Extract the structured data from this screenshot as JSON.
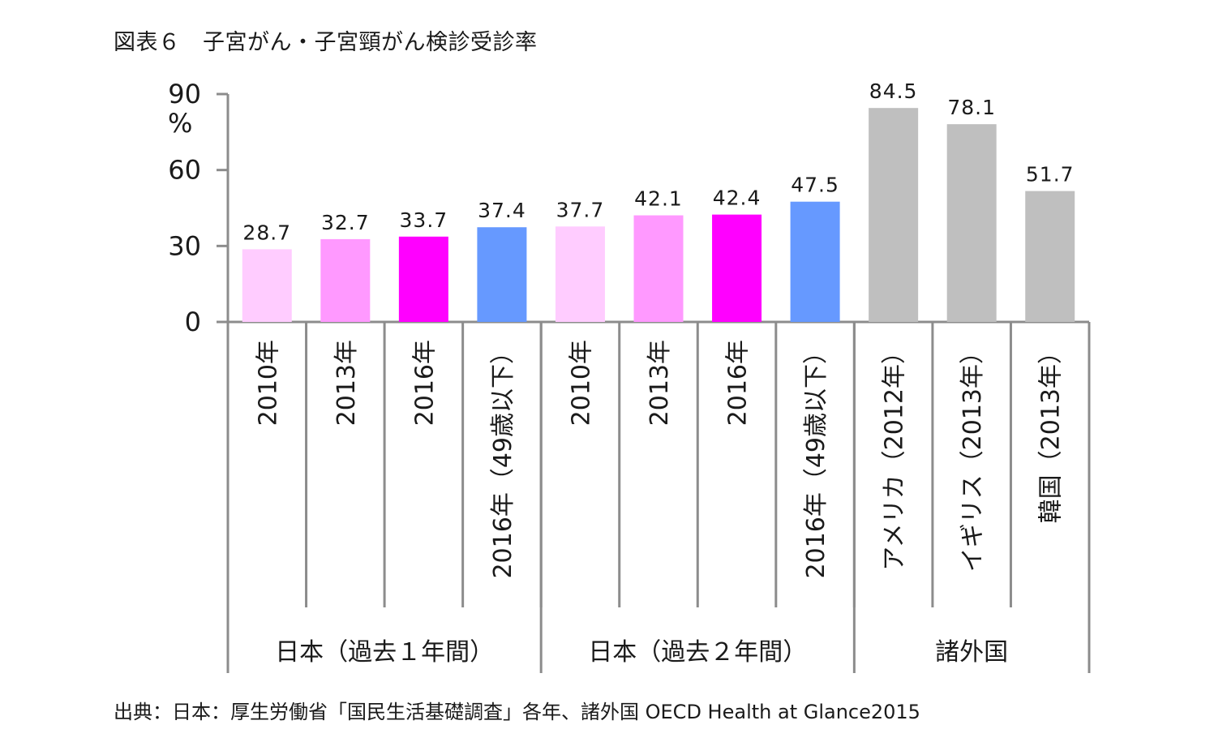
{
  "title": "図表６　子宮がん・子宮頸がん検診受診率",
  "source": "出典：日本：厚生労働省「国民生活基礎調査」各年、諸外国 OECD Health at Glance2015",
  "chart_data": {
    "type": "bar",
    "title": "図表６　子宮がん・子宮頸がん検診受診率",
    "ylabel": "%",
    "ylim": [
      0,
      90
    ],
    "yticks": [
      0,
      30,
      60,
      90
    ],
    "grid": false,
    "categories": [
      "2010年",
      "2013年",
      "2016年",
      "2016年（49歳以下）",
      "2010年",
      "2013年",
      "2016年",
      "2016年（49歳以下）",
      "アメリカ（2012年）",
      "イギリス（2013年）",
      "韓国（2013年）"
    ],
    "values": [
      28.7,
      32.7,
      33.7,
      37.4,
      37.7,
      42.1,
      42.4,
      47.5,
      84.5,
      78.1,
      51.7
    ],
    "value_labels": [
      "28.7",
      "32.7",
      "33.7",
      "37.4",
      "37.7",
      "42.1",
      "42.4",
      "47.5",
      "84.5",
      "78.1",
      "51.7"
    ],
    "colors": [
      "#ffccff",
      "#ff99ff",
      "#ff00ff",
      "#6699ff",
      "#ffccff",
      "#ff99ff",
      "#ff00ff",
      "#6699ff",
      "#bfbfbf",
      "#bfbfbf",
      "#bfbfbf"
    ],
    "groups": [
      {
        "label": "日本（過去１年間）",
        "count": 4
      },
      {
        "label": "日本（過去２年間）",
        "count": 4
      },
      {
        "label": "諸外国",
        "count": 3
      }
    ]
  }
}
